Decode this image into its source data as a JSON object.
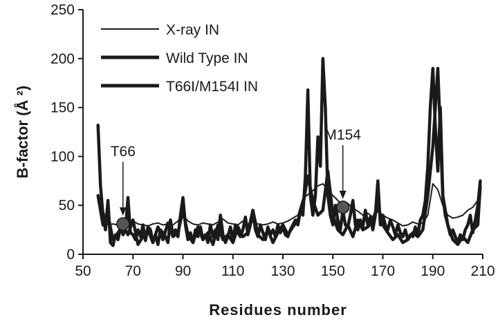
{
  "chart_data": {
    "type": "line",
    "xlabel": "Residues number",
    "ylabel": "B-factor (Å ²)",
    "xlim": [
      50,
      210
    ],
    "ylim": [
      0,
      250
    ],
    "xticks": [
      50,
      70,
      90,
      110,
      130,
      150,
      170,
      190,
      210
    ],
    "yticks": [
      0,
      50,
      100,
      150,
      200,
      250
    ],
    "grid": false,
    "legend_position": "top-left",
    "series": [
      {
        "name": "X-ray IN",
        "style": "thin",
        "x": [
          56,
          58,
          60,
          62,
          64,
          66,
          68,
          70,
          72,
          74,
          76,
          78,
          80,
          82,
          84,
          86,
          88,
          90,
          92,
          94,
          96,
          98,
          100,
          102,
          104,
          106,
          108,
          110,
          112,
          114,
          116,
          118,
          120,
          122,
          124,
          126,
          128,
          130,
          132,
          134,
          136,
          138,
          140,
          142,
          144,
          146,
          148,
          150,
          152,
          154,
          156,
          158,
          160,
          162,
          164,
          166,
          168,
          170,
          172,
          174,
          176,
          178,
          180,
          182,
          184,
          186,
          188,
          190,
          192,
          194,
          196,
          198,
          200,
          202,
          204,
          206,
          208,
          209
        ],
        "y": [
          58,
          45,
          30,
          31,
          30,
          31,
          32,
          34,
          31,
          30,
          29,
          31,
          32,
          30,
          31,
          30,
          34,
          40,
          34,
          31,
          30,
          32,
          31,
          30,
          33,
          36,
          32,
          31,
          30,
          34,
          31,
          33,
          31,
          30,
          31,
          33,
          31,
          32,
          34,
          37,
          40,
          57,
          61,
          65,
          70,
          72,
          66,
          60,
          55,
          50,
          52,
          47,
          44,
          40,
          42,
          38,
          44,
          40,
          37,
          35,
          32,
          29,
          30,
          33,
          31,
          32,
          40,
          72,
          66,
          50,
          40,
          37,
          38,
          40,
          45,
          48,
          55,
          60
        ]
      },
      {
        "name": "Wild Type IN",
        "style": "thick",
        "x": [
          56,
          57,
          58,
          59,
          60,
          61,
          62,
          63,
          64,
          65,
          66,
          67,
          68,
          69,
          70,
          71,
          72,
          73,
          74,
          75,
          76,
          77,
          78,
          79,
          80,
          81,
          82,
          83,
          84,
          85,
          86,
          87,
          88,
          89,
          90,
          91,
          92,
          93,
          94,
          95,
          96,
          97,
          98,
          99,
          100,
          101,
          102,
          103,
          104,
          105,
          106,
          107,
          108,
          109,
          110,
          111,
          112,
          113,
          114,
          115,
          116,
          117,
          118,
          119,
          120,
          121,
          122,
          123,
          124,
          125,
          126,
          127,
          128,
          129,
          130,
          131,
          132,
          133,
          134,
          135,
          136,
          137,
          138,
          139,
          140,
          141,
          142,
          143,
          144,
          145,
          146,
          147,
          148,
          149,
          150,
          151,
          152,
          153,
          154,
          155,
          156,
          157,
          158,
          159,
          160,
          161,
          162,
          163,
          164,
          165,
          166,
          167,
          168,
          169,
          170,
          171,
          172,
          173,
          174,
          175,
          176,
          177,
          178,
          179,
          180,
          181,
          182,
          183,
          184,
          185,
          186,
          187,
          188,
          189,
          190,
          191,
          192,
          193,
          194,
          195,
          196,
          197,
          198,
          199,
          200,
          201,
          202,
          203,
          204,
          205,
          206,
          207,
          208,
          209
        ],
        "y": [
          132,
          70,
          40,
          25,
          55,
          12,
          9,
          20,
          15,
          28,
          20,
          25,
          58,
          22,
          20,
          15,
          25,
          18,
          30,
          14,
          28,
          25,
          12,
          20,
          10,
          25,
          22,
          18,
          12,
          35,
          20,
          25,
          18,
          40,
          58,
          30,
          15,
          22,
          12,
          25,
          18,
          28,
          15,
          20,
          12,
          30,
          18,
          25,
          15,
          40,
          20,
          12,
          18,
          28,
          15,
          30,
          22,
          18,
          25,
          38,
          20,
          30,
          45,
          25,
          18,
          30,
          22,
          15,
          28,
          20,
          25,
          18,
          30,
          22,
          28,
          20,
          18,
          25,
          30,
          35,
          30,
          45,
          40,
          80,
          168,
          60,
          40,
          60,
          120,
          90,
          200,
          150,
          60,
          40,
          30,
          50,
          35,
          25,
          45,
          30,
          28,
          40,
          55,
          30,
          25,
          35,
          28,
          45,
          30,
          38,
          25,
          40,
          75,
          30,
          40,
          30,
          25,
          35,
          28,
          20,
          30,
          22,
          18,
          25,
          15,
          20,
          18,
          28,
          20,
          35,
          40,
          55,
          90,
          150,
          190,
          130,
          85,
          150,
          60,
          40,
          30,
          20,
          25,
          18,
          12,
          20,
          15,
          25,
          30,
          40,
          22,
          35,
          50,
          75
        ]
      },
      {
        "name": "T66I/M154I IN",
        "style": "thick",
        "x": [
          56,
          58,
          60,
          62,
          64,
          66,
          68,
          70,
          72,
          74,
          76,
          78,
          80,
          82,
          84,
          86,
          88,
          90,
          92,
          94,
          96,
          98,
          100,
          102,
          104,
          106,
          108,
          110,
          112,
          114,
          116,
          118,
          120,
          122,
          124,
          126,
          128,
          130,
          132,
          134,
          136,
          138,
          140,
          142,
          144,
          146,
          148,
          150,
          152,
          154,
          156,
          158,
          160,
          162,
          164,
          166,
          168,
          170,
          172,
          174,
          176,
          178,
          180,
          182,
          184,
          186,
          188,
          190,
          192,
          194,
          196,
          198,
          200,
          202,
          204,
          206,
          208,
          209
        ],
        "y": [
          60,
          30,
          40,
          15,
          22,
          30,
          20,
          35,
          10,
          18,
          25,
          12,
          28,
          15,
          32,
          18,
          22,
          45,
          20,
          12,
          28,
          15,
          22,
          10,
          30,
          15,
          20,
          12,
          28,
          18,
          22,
          45,
          20,
          15,
          25,
          12,
          22,
          30,
          20,
          28,
          35,
          50,
          80,
          55,
          40,
          45,
          85,
          40,
          25,
          20,
          30,
          18,
          35,
          25,
          28,
          35,
          50,
          30,
          22,
          15,
          20,
          12,
          15,
          22,
          18,
          25,
          60,
          110,
          190,
          60,
          30,
          15,
          10,
          18,
          12,
          25,
          30,
          70
        ]
      }
    ],
    "annotations": [
      {
        "label": "T66",
        "x": 66,
        "y": 31
      },
      {
        "label": "M154",
        "x": 154,
        "y": 48
      }
    ]
  }
}
